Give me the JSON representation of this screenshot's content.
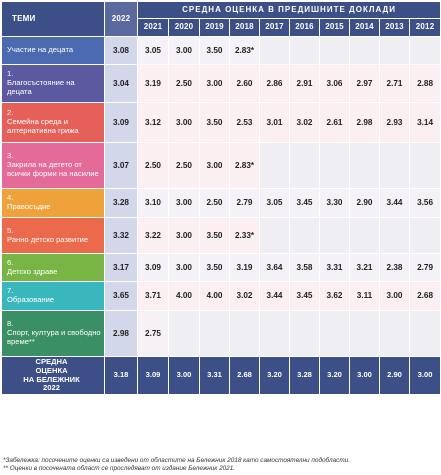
{
  "header": {
    "topics_label": "ТЕМИ",
    "year_2022": "2022",
    "group_label": "СРЕДНА ОЦЕНКА В ПРЕДИШНИТЕ ДОКЛАДИ",
    "years": [
      "2021",
      "2020",
      "2019",
      "2018",
      "2017",
      "2016",
      "2015",
      "2014",
      "2013",
      "2012"
    ]
  },
  "rows": [
    {
      "num": "",
      "topic": "Участие на децата",
      "v2022": "3.08",
      "values": [
        "3.05",
        "3.00",
        "3.50",
        "2.83*",
        "",
        "",
        "",
        "",
        "",
        ""
      ]
    },
    {
      "num": "1.",
      "topic": "Благосъстояние на децата",
      "v2022": "3.04",
      "values": [
        "3.19",
        "2.50",
        "3.00",
        "2.60",
        "2.86",
        "2.91",
        "3.06",
        "2.97",
        "2.71",
        "2.88"
      ]
    },
    {
      "num": "2.",
      "topic": "Семейна среда и алтернативна грижа",
      "v2022": "3.09",
      "values": [
        "3.12",
        "3.00",
        "3.50",
        "2.53",
        "3.01",
        "3.02",
        "2.61",
        "2.98",
        "2.93",
        "3.14"
      ]
    },
    {
      "num": "3.",
      "topic": "Закрила на детето от всички форми на насилие",
      "v2022": "3.07",
      "values": [
        "2.50",
        "2.50",
        "3.00",
        "2.83*",
        "",
        "",
        "",
        "",
        "",
        ""
      ]
    },
    {
      "num": "4.",
      "topic": "Правосъдие",
      "v2022": "3.28",
      "values": [
        "3.10",
        "3.00",
        "2.50",
        "2.79",
        "3.05",
        "3.45",
        "3.30",
        "2.90",
        "3.44",
        "3.56"
      ]
    },
    {
      "num": "5.",
      "topic": "Ранно детско развитие",
      "v2022": "3.32",
      "values": [
        "3.22",
        "3.00",
        "3.50",
        "2.33*",
        "",
        "",
        "",
        "",
        "",
        ""
      ]
    },
    {
      "num": "6.",
      "topic": "Детско здраве",
      "v2022": "3.17",
      "values": [
        "3.09",
        "3.00",
        "3.50",
        "3.19",
        "3.64",
        "3.58",
        "3.31",
        "3.21",
        "2.38",
        "2.79"
      ]
    },
    {
      "num": "7.",
      "topic": "Образование",
      "v2022": "3.65",
      "values": [
        "3.71",
        "4.00",
        "4.00",
        "3.02",
        "3.44",
        "3.45",
        "3.62",
        "3.11",
        "3.00",
        "2.68"
      ]
    },
    {
      "num": "8.",
      "topic": "Спорт, култура и свободно време**",
      "v2022": "2.98",
      "values": [
        "2.75",
        "",
        "",
        "",
        "",
        "",
        "",
        "",
        "",
        ""
      ]
    }
  ],
  "average": {
    "label_line1": "СРЕДНА",
    "label_line2": "ОЦЕНКА",
    "label_line3": "НА БЕЛЕЖНИК",
    "label_line4": "2022",
    "v2022": "3.18",
    "values": [
      "3.09",
      "3.00",
      "3.31",
      "2.68",
      "3.20",
      "3.28",
      "3.20",
      "3.00",
      "2.90",
      "3.00"
    ]
  },
  "footnotes": {
    "note1": "*Забележка: посочените оценки са изведени от областите на Бележник 2018 като самостоятелни подобласти.",
    "note2": "** Оценки в посочената област се проследяват от издание Бележник 2021."
  },
  "colors": {
    "header": "#3d4f87",
    "col2022": "#d2d8ea",
    "topic_colors": [
      "#4b6ab0",
      "#5b5aa0",
      "#e56058",
      "#e46a9a",
      "#f0a23a",
      "#ea6a4b",
      "#79b545",
      "#3ab7bd",
      "#3b8f65"
    ]
  }
}
